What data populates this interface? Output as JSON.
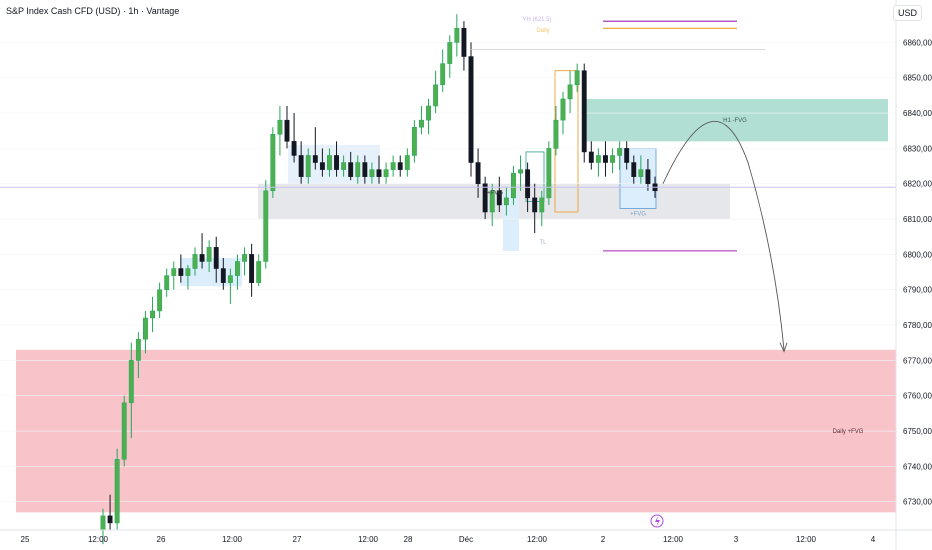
{
  "header": {
    "title": "S&P Index Cash CFD (USD) · 1h · Vantage",
    "currency": "USD"
  },
  "chart_data": {
    "type": "candlestick",
    "ylim": [
      6722,
      6872
    ],
    "y_ticks": [
      "6860,00",
      "6850,00",
      "6840,00",
      "6830,00",
      "6820,00",
      "6810,00",
      "6800,00",
      "6790,00",
      "6780,00",
      "6770,00",
      "6760,00",
      "6750,00",
      "6740,00",
      "6730,00"
    ],
    "x_ticks": [
      "25",
      "12:00",
      "26",
      "12:00",
      "27",
      "12:00",
      "28",
      "Déc",
      "12:00",
      "2",
      "12:00",
      "3",
      "12:00",
      "4"
    ],
    "candles": [
      [
        6722,
        6728,
        6718,
        6726
      ],
      [
        6726,
        6732,
        6722,
        6724
      ],
      [
        6724,
        6745,
        6722,
        6742
      ],
      [
        6742,
        6760,
        6740,
        6758
      ],
      [
        6758,
        6775,
        6748,
        6770
      ],
      [
        6770,
        6778,
        6765,
        6776
      ],
      [
        6776,
        6784,
        6772,
        6782
      ],
      [
        6782,
        6788,
        6778,
        6784
      ],
      [
        6784,
        6792,
        6782,
        6790
      ],
      [
        6790,
        6796,
        6788,
        6794
      ],
      [
        6794,
        6798,
        6790,
        6796
      ],
      [
        6796,
        6800,
        6792,
        6794
      ],
      [
        6794,
        6797,
        6790,
        6796
      ],
      [
        6796,
        6802,
        6794,
        6800
      ],
      [
        6800,
        6806,
        6796,
        6798
      ],
      [
        6798,
        6804,
        6795,
        6802
      ],
      [
        6802,
        6805,
        6792,
        6796
      ],
      [
        6796,
        6799,
        6790,
        6792
      ],
      [
        6792,
        6796,
        6786,
        6794
      ],
      [
        6794,
        6800,
        6790,
        6798
      ],
      [
        6798,
        6802,
        6794,
        6800
      ],
      [
        6800,
        6803,
        6788,
        6792
      ],
      [
        6792,
        6800,
        6791,
        6798
      ],
      [
        6798,
        6821,
        6796,
        6818
      ],
      [
        6818,
        6836,
        6816,
        6834
      ],
      [
        6834,
        6842,
        6828,
        6838
      ],
      [
        6838,
        6842,
        6830,
        6832
      ],
      [
        6832,
        6840,
        6826,
        6828
      ],
      [
        6828,
        6832,
        6820,
        6822
      ],
      [
        6822,
        6830,
        6820,
        6828
      ],
      [
        6828,
        6836,
        6824,
        6826
      ],
      [
        6826,
        6830,
        6822,
        6824
      ],
      [
        6824,
        6830,
        6822,
        6828
      ],
      [
        6828,
        6832,
        6822,
        6824
      ],
      [
        6824,
        6828,
        6822,
        6826
      ],
      [
        6826,
        6829,
        6821,
        6822
      ],
      [
        6822,
        6828,
        6820,
        6826
      ],
      [
        6826,
        6828,
        6820,
        6822
      ],
      [
        6822,
        6826,
        6820,
        6824
      ],
      [
        6824,
        6828,
        6820,
        6822
      ],
      [
        6822,
        6826,
        6820,
        6824
      ],
      [
        6824,
        6828,
        6822,
        6826
      ],
      [
        6826,
        6828,
        6822,
        6824
      ],
      [
        6824,
        6830,
        6822,
        6828
      ],
      [
        6828,
        6838,
        6826,
        6836
      ],
      [
        6836,
        6842,
        6834,
        6838
      ],
      [
        6838,
        6844,
        6834,
        6842
      ],
      [
        6842,
        6852,
        6840,
        6848
      ],
      [
        6848,
        6858,
        6846,
        6854
      ],
      [
        6854,
        6862,
        6850,
        6860
      ],
      [
        6860,
        6868,
        6856,
        6864
      ],
      [
        6864,
        6866,
        6852,
        6856
      ],
      [
        6856,
        6860,
        6822,
        6826
      ],
      [
        6826,
        6830,
        6816,
        6820
      ],
      [
        6820,
        6822,
        6810,
        6812
      ],
      [
        6812,
        6820,
        6808,
        6818
      ],
      [
        6818,
        6822,
        6812,
        6814
      ],
      [
        6814,
        6819,
        6811,
        6816
      ],
      [
        6816,
        6825,
        6814,
        6823
      ],
      [
        6823,
        6828,
        6818,
        6824
      ],
      [
        6824,
        6826,
        6812,
        6816
      ],
      [
        6816,
        6820,
        6806,
        6812
      ],
      [
        6812,
        6818,
        6808,
        6816
      ],
      [
        6816,
        6832,
        6814,
        6830
      ],
      [
        6830,
        6842,
        6828,
        6838
      ],
      [
        6838,
        6846,
        6834,
        6844
      ],
      [
        6844,
        6852,
        6840,
        6848
      ],
      [
        6848,
        6854,
        6846,
        6852
      ],
      [
        6852,
        6854,
        6826,
        6829
      ],
      [
        6829,
        6832,
        6824,
        6826
      ],
      [
        6826,
        6830,
        6822,
        6828
      ],
      [
        6828,
        6832,
        6822,
        6826
      ],
      [
        6826,
        6830,
        6823,
        6828
      ],
      [
        6828,
        6832,
        6824,
        6830
      ],
      [
        6830,
        6832,
        6824,
        6826
      ],
      [
        6826,
        6828,
        6820,
        6822
      ],
      [
        6822,
        6828,
        6820,
        6824
      ],
      [
        6824,
        6827,
        6818,
        6820
      ],
      [
        6820,
        6822,
        6816,
        6818
      ]
    ],
    "annotations": {
      "zones": [
        {
          "label": "H1 -FVG",
          "from": 6832,
          "to": 6844,
          "color": "#b2dfd4"
        },
        {
          "label": "Daily +FVG",
          "from": 6727,
          "to": 6773,
          "color": "#f8c4c9"
        },
        {
          "label": "",
          "from": 6810,
          "to": 6820,
          "color": "#e6e7ea"
        }
      ],
      "levels": [
        {
          "label": "YH (621.5)",
          "value": 6862,
          "color": "#c8b8e8"
        },
        {
          "label": "Daily",
          "value": 6860,
          "color": "#f4c46c"
        },
        {
          "label": "",
          "value": 6819,
          "color": "#c9c4f0"
        }
      ],
      "texts": [
        "+FVG",
        "+FVG",
        "TL"
      ]
    }
  }
}
